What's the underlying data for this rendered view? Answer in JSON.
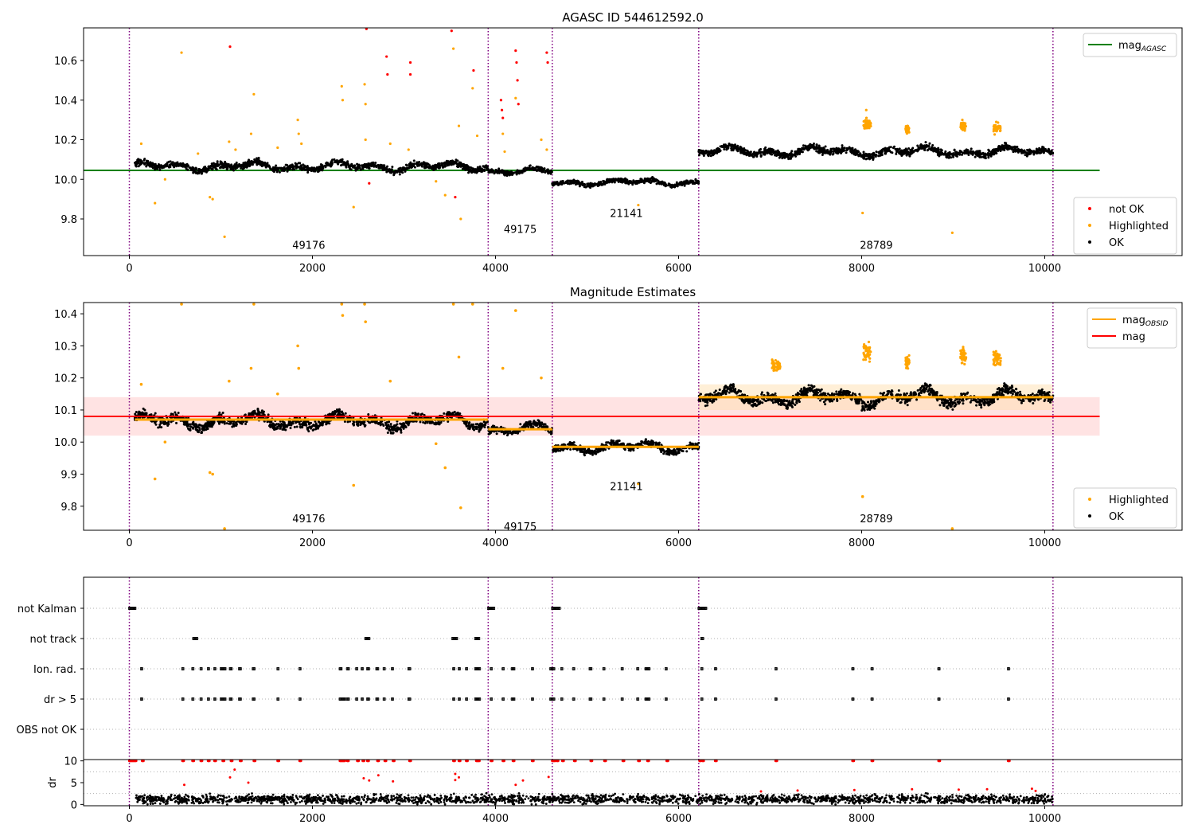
{
  "figure": {
    "colors": {
      "ok": "#000000",
      "highlighted": "#ffa500",
      "not_ok": "#ff0000",
      "agasc_line": "#008000",
      "obsid_line": "#ffa500",
      "mag_line": "#ff0000",
      "band": "#ffc0c0",
      "obs_divider": "#800080",
      "grid": "#b0b0b0"
    }
  },
  "chart_data": [
    {
      "type": "scatter",
      "title": "AGASC ID 544612592.0",
      "xlim": [
        -500,
        11500
      ],
      "ylim": [
        9.615,
        10.765
      ],
      "xticks": [
        0,
        2000,
        4000,
        6000,
        8000,
        10000
      ],
      "yticks": [
        9.8,
        10.0,
        10.2,
        10.4,
        10.6
      ],
      "obs_dividers": [
        0,
        3920,
        4620,
        6220,
        10090
      ],
      "obsid_labels": [
        {
          "text": "49176",
          "x": 1960,
          "y": 9.65
        },
        {
          "text": "49175",
          "x": 4270,
          "y": 9.73
        },
        {
          "text": "21141",
          "x": 5430,
          "y": 9.81
        },
        {
          "text": "28789",
          "x": 8160,
          "y": 9.65
        }
      ],
      "mag_agasc": {
        "value": 10.045,
        "x_range": [
          -500,
          10600
        ]
      },
      "ok_segments": [
        {
          "x_start": 60,
          "x_end": 3920,
          "level": 10.065,
          "spread": 0.028
        },
        {
          "x_start": 3920,
          "x_end": 4620,
          "level": 10.04,
          "spread": 0.02
        },
        {
          "x_start": 4620,
          "x_end": 6220,
          "level": 9.985,
          "spread": 0.02
        },
        {
          "x_start": 6220,
          "x_end": 10090,
          "level": 10.14,
          "spread": 0.03
        }
      ],
      "highlighted_points": [
        [
          130,
          10.18
        ],
        [
          280,
          9.88
        ],
        [
          390,
          10.0
        ],
        [
          570,
          10.64
        ],
        [
          750,
          10.13
        ],
        [
          880,
          9.91
        ],
        [
          910,
          9.9
        ],
        [
          1040,
          9.71
        ],
        [
          1090,
          10.19
        ],
        [
          1160,
          10.15
        ],
        [
          1360,
          10.43
        ],
        [
          1330,
          10.23
        ],
        [
          1620,
          10.16
        ],
        [
          1840,
          10.3
        ],
        [
          1850,
          10.23
        ],
        [
          1880,
          10.18
        ],
        [
          2320,
          10.47
        ],
        [
          2330,
          10.4
        ],
        [
          2450,
          9.86
        ],
        [
          2570,
          10.48
        ],
        [
          2580,
          10.38
        ],
        [
          2580,
          10.2
        ],
        [
          2850,
          10.18
        ],
        [
          3050,
          10.15
        ],
        [
          3350,
          9.99
        ],
        [
          3450,
          9.92
        ],
        [
          3540,
          10.66
        ],
        [
          3600,
          10.27
        ],
        [
          3620,
          9.8
        ],
        [
          3750,
          10.46
        ],
        [
          3800,
          10.22
        ],
        [
          4080,
          10.23
        ],
        [
          4100,
          10.14
        ],
        [
          4220,
          10.41
        ],
        [
          4500,
          10.2
        ],
        [
          4560,
          10.15
        ],
        [
          5560,
          9.87
        ],
        [
          8010,
          9.83
        ],
        [
          8050,
          10.35
        ],
        [
          8080,
          10.29
        ],
        [
          8500,
          10.27
        ],
        [
          8990,
          9.73
        ],
        [
          9100,
          10.3
        ],
        [
          9470,
          10.29
        ]
      ],
      "not_ok_points": [
        [
          1100,
          10.67
        ],
        [
          2590,
          10.76
        ],
        [
          2620,
          9.98
        ],
        [
          2810,
          10.62
        ],
        [
          2820,
          10.53
        ],
        [
          3070,
          10.59
        ],
        [
          3070,
          10.53
        ],
        [
          3520,
          10.75
        ],
        [
          3560,
          9.91
        ],
        [
          3760,
          10.55
        ],
        [
          4060,
          10.4
        ],
        [
          4070,
          10.35
        ],
        [
          4080,
          10.31
        ],
        [
          4220,
          10.65
        ],
        [
          4230,
          10.59
        ],
        [
          4240,
          10.5
        ],
        [
          4250,
          10.38
        ],
        [
          4560,
          10.64
        ],
        [
          4570,
          10.59
        ]
      ],
      "highlight_clusters": [
        [
          8020,
          8100,
          10.28,
          0.05
        ],
        [
          8480,
          8520,
          10.25,
          0.03
        ],
        [
          9080,
          9140,
          10.27,
          0.04
        ],
        [
          9440,
          9520,
          10.26,
          0.04
        ]
      ],
      "legend_top": [
        {
          "label": "mag",
          "sub": "AGASC",
          "color": "#008000"
        }
      ],
      "legend_bottom": [
        {
          "label": "not OK",
          "color": "#ff0000"
        },
        {
          "label": "Highlighted",
          "color": "#ffa500"
        },
        {
          "label": "OK",
          "color": "#000000"
        }
      ]
    },
    {
      "type": "scatter",
      "title": "Magnitude Estimates",
      "xlim": [
        -500,
        11500
      ],
      "ylim": [
        9.725,
        10.435
      ],
      "xticks": [
        0,
        2000,
        4000,
        6000,
        8000,
        10000
      ],
      "yticks": [
        9.8,
        9.9,
        10.0,
        10.1,
        10.2,
        10.3,
        10.4
      ],
      "obs_dividers": [
        0,
        3920,
        4620,
        6220,
        10090
      ],
      "obsid_labels": [
        {
          "text": "49176",
          "x": 1960,
          "y": 9.75
        },
        {
          "text": "49175",
          "x": 4270,
          "y": 9.725
        },
        {
          "text": "21141",
          "x": 5430,
          "y": 9.85
        },
        {
          "text": "28789",
          "x": 8160,
          "y": 9.75
        }
      ],
      "mag": {
        "value": 10.08,
        "band": [
          10.02,
          10.14
        ],
        "x_range": [
          -500,
          10600
        ]
      },
      "mag_obsid": [
        {
          "x_start": 60,
          "x_end": 3920,
          "value": 10.07
        },
        {
          "x_start": 3920,
          "x_end": 4620,
          "value": 10.04
        },
        {
          "x_start": 4620,
          "x_end": 6220,
          "value": 9.985
        },
        {
          "x_start": 6220,
          "x_end": 10090,
          "value": 10.14,
          "band": [
            10.1,
            10.18
          ]
        }
      ],
      "highlighted_points": [
        [
          130,
          10.18
        ],
        [
          280,
          9.885
        ],
        [
          390,
          10.0
        ],
        [
          570,
          10.43
        ],
        [
          880,
          9.905
        ],
        [
          910,
          9.9
        ],
        [
          1040,
          9.73
        ],
        [
          1090,
          10.19
        ],
        [
          1360,
          10.43
        ],
        [
          1330,
          10.23
        ],
        [
          1620,
          10.15
        ],
        [
          1840,
          10.3
        ],
        [
          1850,
          10.23
        ],
        [
          2320,
          10.43
        ],
        [
          2330,
          10.395
        ],
        [
          2450,
          9.865
        ],
        [
          2570,
          10.43
        ],
        [
          2580,
          10.375
        ],
        [
          2850,
          10.19
        ],
        [
          3350,
          9.995
        ],
        [
          3450,
          9.92
        ],
        [
          3540,
          10.43
        ],
        [
          3600,
          10.265
        ],
        [
          3620,
          9.795
        ],
        [
          3750,
          10.43
        ],
        [
          4080,
          10.23
        ],
        [
          4220,
          10.41
        ],
        [
          4500,
          10.2
        ],
        [
          5560,
          9.87
        ],
        [
          8010,
          9.83
        ],
        [
          8990,
          9.73
        ]
      ],
      "highlight_clusters": [
        [
          7020,
          7110,
          10.24,
          0.03
        ],
        [
          8020,
          8100,
          10.28,
          0.05
        ],
        [
          8480,
          8520,
          10.25,
          0.03
        ],
        [
          9080,
          9140,
          10.27,
          0.04
        ],
        [
          9440,
          9520,
          10.26,
          0.04
        ]
      ],
      "legend_top": [
        {
          "label": "mag",
          "sub": "OBSID",
          "color": "#ffa500"
        },
        {
          "label": "mag",
          "sub": "",
          "color": "#ff0000"
        }
      ],
      "legend_bottom": [
        {
          "label": "Highlighted",
          "color": "#ffa500"
        },
        {
          "label": "OK",
          "color": "#000000"
        }
      ]
    },
    {
      "type": "scatter",
      "title": "",
      "xlim": [
        -500,
        11500
      ],
      "categories": [
        "not Kalman",
        "not track",
        "Ion. rad.",
        "dr > 5",
        "OBS not OK"
      ],
      "obs_dividers": [
        0,
        3920,
        4620,
        6220,
        10090
      ],
      "flag_runs": {
        "not Kalman": [
          [
            0,
            70
          ],
          [
            3920,
            3990
          ],
          [
            4620,
            4700
          ],
          [
            6220,
            6300
          ]
        ],
        "not track": [
          [
            700,
            740
          ],
          [
            2580,
            2620
          ],
          [
            3530,
            3580
          ],
          [
            3780,
            3820
          ],
          [
            6250,
            6270
          ]
        ],
        "Ion. rad.": [
          [
            130,
            140
          ],
          [
            580,
            590
          ],
          [
            690,
            700
          ],
          [
            780,
            790
          ],
          [
            860,
            870
          ],
          [
            930,
            940
          ],
          [
            1000,
            1050
          ],
          [
            1100,
            1120
          ],
          [
            1200,
            1220
          ],
          [
            1350,
            1370
          ],
          [
            1620,
            1630
          ],
          [
            1860,
            1870
          ],
          [
            2300,
            2320
          ],
          [
            2380,
            2400
          ],
          [
            2480,
            2490
          ],
          [
            2540,
            2550
          ],
          [
            2600,
            2620
          ],
          [
            2700,
            2720
          ],
          [
            2780,
            2790
          ],
          [
            2870,
            2880
          ],
          [
            3050,
            3070
          ],
          [
            3540,
            3550
          ],
          [
            3600,
            3610
          ],
          [
            3680,
            3690
          ],
          [
            3780,
            3830
          ],
          [
            3950,
            3960
          ],
          [
            4080,
            4090
          ],
          [
            4180,
            4210
          ],
          [
            4400,
            4410
          ],
          [
            4600,
            4640
          ],
          [
            4720,
            4730
          ],
          [
            4850,
            4860
          ],
          [
            5030,
            5050
          ],
          [
            5180,
            5190
          ],
          [
            5380,
            5390
          ],
          [
            5550,
            5560
          ],
          [
            5640,
            5680
          ],
          [
            5860,
            5870
          ],
          [
            6250,
            6260
          ],
          [
            6400,
            6410
          ],
          [
            7060,
            7070
          ],
          [
            7900,
            7910
          ],
          [
            8110,
            8120
          ],
          [
            8840,
            8850
          ],
          [
            9600,
            9610
          ]
        ],
        "dr > 5": [
          [
            130,
            140
          ],
          [
            580,
            590
          ],
          [
            690,
            700
          ],
          [
            780,
            790
          ],
          [
            860,
            870
          ],
          [
            930,
            940
          ],
          [
            1000,
            1050
          ],
          [
            1100,
            1120
          ],
          [
            1200,
            1220
          ],
          [
            1350,
            1370
          ],
          [
            1620,
            1630
          ],
          [
            1860,
            1870
          ],
          [
            2300,
            2360
          ],
          [
            2380,
            2400
          ],
          [
            2480,
            2490
          ],
          [
            2540,
            2550
          ],
          [
            2600,
            2620
          ],
          [
            2700,
            2720
          ],
          [
            2780,
            2790
          ],
          [
            2870,
            2880
          ],
          [
            3050,
            3070
          ],
          [
            3540,
            3550
          ],
          [
            3600,
            3610
          ],
          [
            3680,
            3690
          ],
          [
            3780,
            3830
          ],
          [
            3950,
            3960
          ],
          [
            4080,
            4090
          ],
          [
            4180,
            4210
          ],
          [
            4400,
            4410
          ],
          [
            4600,
            4640
          ],
          [
            4720,
            4730
          ],
          [
            4850,
            4860
          ],
          [
            5030,
            5050
          ],
          [
            5180,
            5190
          ],
          [
            5380,
            5390
          ],
          [
            5550,
            5560
          ],
          [
            5640,
            5680
          ],
          [
            5860,
            5870
          ],
          [
            6250,
            6260
          ],
          [
            6400,
            6410
          ],
          [
            7060,
            7070
          ],
          [
            7900,
            7910
          ],
          [
            8110,
            8120
          ],
          [
            8840,
            8850
          ],
          [
            9600,
            9610
          ]
        ],
        "OBS not OK": []
      }
    },
    {
      "type": "scatter",
      "title": "",
      "ylabel": "dr",
      "xlim": [
        -500,
        11500
      ],
      "ylim": [
        -0.3,
        10.3
      ],
      "xticks": [
        0,
        2000,
        4000,
        6000,
        8000,
        10000
      ],
      "yticks": [
        0,
        5,
        10
      ],
      "obs_dividers": [
        0,
        3920,
        4620,
        6220,
        10090
      ],
      "ok_level": 1.2,
      "ok_spread": 1.0,
      "capped_red_x": [
        0,
        20,
        40,
        60,
        140,
        580,
        690,
        780,
        860,
        930,
        1020,
        1110,
        1210,
        1360,
        1620,
        1860,
        2300,
        2320,
        2340,
        2380,
        2490,
        2550,
        2600,
        2710,
        2790,
        2880,
        3060,
        3540,
        3600,
        3680,
        3790,
        3810,
        3950,
        4080,
        4190,
        4400,
        4620,
        4640,
        4670,
        4730,
        4860,
        5040,
        5190,
        5390,
        5560,
        5660,
        5870,
        6230,
        6260,
        6400,
        7060,
        7900,
        8110,
        8840,
        9600
      ],
      "scattered_red": [
        [
          600,
          4.5
        ],
        [
          1100,
          6.2
        ],
        [
          1150,
          8
        ],
        [
          1300,
          5
        ],
        [
          2560,
          6
        ],
        [
          2620,
          5.5
        ],
        [
          2720,
          6.7
        ],
        [
          2880,
          5.3
        ],
        [
          3560,
          7
        ],
        [
          3560,
          5.6
        ],
        [
          3600,
          6.2
        ],
        [
          4220,
          4.5
        ],
        [
          4300,
          5.5
        ],
        [
          4580,
          6.3
        ],
        [
          6900,
          3
        ],
        [
          7300,
          3.2
        ],
        [
          7920,
          3.3
        ],
        [
          8550,
          3.5
        ],
        [
          9060,
          3.4
        ],
        [
          9370,
          3.5
        ],
        [
          9860,
          3.6
        ],
        [
          9900,
          3.1
        ]
      ]
    }
  ]
}
